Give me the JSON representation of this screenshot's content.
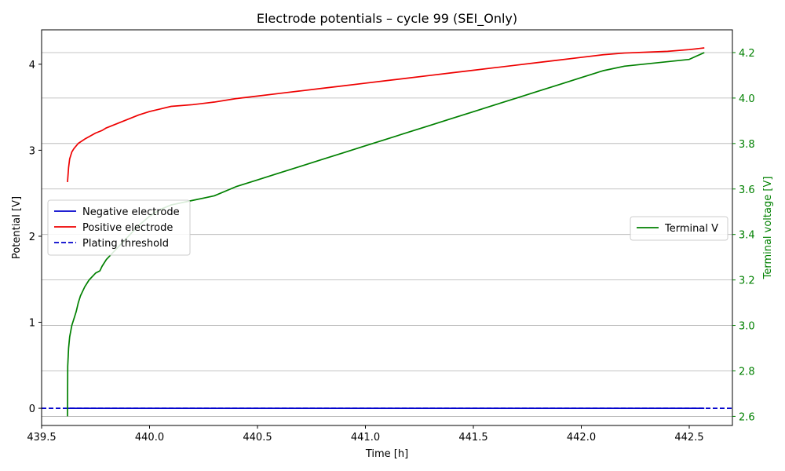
{
  "chart_data": {
    "type": "line",
    "title": "Electrode potentials – cycle 99 (SEI_Only)",
    "xlabel": "Time [h]",
    "ylabel_left": "Potential [V]",
    "ylabel_right": "Terminal voltage [V]",
    "xlim": [
      439.5,
      442.7
    ],
    "ylim_left": [
      -0.2,
      4.4
    ],
    "ylim_right": [
      2.56,
      4.3
    ],
    "x_ticks": [
      "439.5",
      "440.0",
      "440.5",
      "441.0",
      "441.5",
      "442.0",
      "442.5"
    ],
    "x_tick_values": [
      439.5,
      440.0,
      440.5,
      441.0,
      441.5,
      442.0,
      442.5
    ],
    "y_left_ticks": [
      "0",
      "1",
      "2",
      "3",
      "4"
    ],
    "y_left_tick_values": [
      0,
      1,
      2,
      3,
      4
    ],
    "y_right_ticks": [
      "2.6",
      "2.8",
      "3.0",
      "3.2",
      "3.4",
      "3.6",
      "3.8",
      "4.0",
      "4.2"
    ],
    "y_right_tick_values": [
      2.6,
      2.8,
      3.0,
      3.2,
      3.4,
      3.6,
      3.8,
      4.0,
      4.2
    ],
    "grid": "horizontal lines at right-axis ticks",
    "legend_left": {
      "placement": "center-left",
      "entries": [
        "Negative electrode",
        "Positive electrode",
        "Plating threshold"
      ]
    },
    "legend_right": {
      "placement": "center-right",
      "entries": [
        "Terminal V"
      ]
    },
    "series": [
      {
        "name": "Negative electrode",
        "axis": "left",
        "color": "#0000cc",
        "style": "solid",
        "x": [
          439.62,
          439.7,
          440.0,
          440.5,
          441.0,
          441.5,
          442.0,
          442.57
        ],
        "y": [
          0.0,
          0.0,
          0.0,
          0.0,
          0.0,
          0.0,
          0.0,
          0.0
        ]
      },
      {
        "name": "Positive electrode",
        "axis": "left",
        "color": "#ee0000",
        "style": "solid",
        "x": [
          439.62,
          439.625,
          439.63,
          439.64,
          439.65,
          439.67,
          439.7,
          439.75,
          439.78,
          439.8,
          439.85,
          439.9,
          439.95,
          440.0,
          440.05,
          440.1,
          440.2,
          440.3,
          440.4,
          440.5,
          440.6,
          440.7,
          440.8,
          440.9,
          441.0,
          441.1,
          441.2,
          441.3,
          441.4,
          441.5,
          441.6,
          441.7,
          441.8,
          441.9,
          442.0,
          442.1,
          442.2,
          442.3,
          442.4,
          442.5,
          442.57
        ],
        "y": [
          2.63,
          2.8,
          2.9,
          2.98,
          3.02,
          3.08,
          3.13,
          3.2,
          3.23,
          3.26,
          3.31,
          3.36,
          3.41,
          3.45,
          3.48,
          3.51,
          3.53,
          3.56,
          3.6,
          3.63,
          3.66,
          3.69,
          3.72,
          3.75,
          3.78,
          3.81,
          3.84,
          3.87,
          3.9,
          3.93,
          3.96,
          3.99,
          4.02,
          4.05,
          4.08,
          4.11,
          4.13,
          4.14,
          4.15,
          4.17,
          4.19
        ]
      },
      {
        "name": "Plating threshold",
        "axis": "left",
        "color": "#0000cc",
        "style": "dashed",
        "x": [
          439.5,
          442.7
        ],
        "y": [
          0.0,
          0.0
        ]
      },
      {
        "name": "Terminal V",
        "axis": "right",
        "color": "#008000",
        "style": "solid",
        "x": [
          439.62,
          439.621,
          439.625,
          439.63,
          439.64,
          439.65,
          439.66,
          439.67,
          439.68,
          439.7,
          439.72,
          439.75,
          439.77,
          439.78,
          439.8,
          439.85,
          439.9,
          439.95,
          440.0,
          440.05,
          440.1,
          440.2,
          440.3,
          440.4,
          440.5,
          440.6,
          440.7,
          440.8,
          440.9,
          441.0,
          441.1,
          441.2,
          441.3,
          441.4,
          441.5,
          441.6,
          441.7,
          441.8,
          441.9,
          442.0,
          442.1,
          442.2,
          442.3,
          442.4,
          442.5,
          442.57
        ],
        "y": [
          2.6,
          2.82,
          2.9,
          2.95,
          3.0,
          3.03,
          3.06,
          3.1,
          3.13,
          3.17,
          3.2,
          3.23,
          3.24,
          3.26,
          3.29,
          3.34,
          3.39,
          3.44,
          3.48,
          3.51,
          3.53,
          3.55,
          3.57,
          3.61,
          3.64,
          3.67,
          3.7,
          3.73,
          3.76,
          3.79,
          3.82,
          3.85,
          3.88,
          3.91,
          3.94,
          3.97,
          4.0,
          4.03,
          4.06,
          4.09,
          4.12,
          4.14,
          4.15,
          4.16,
          4.17,
          4.2
        ]
      }
    ]
  },
  "colors": {
    "right_axis": "#008000",
    "grid": "#b0b0b0"
  }
}
